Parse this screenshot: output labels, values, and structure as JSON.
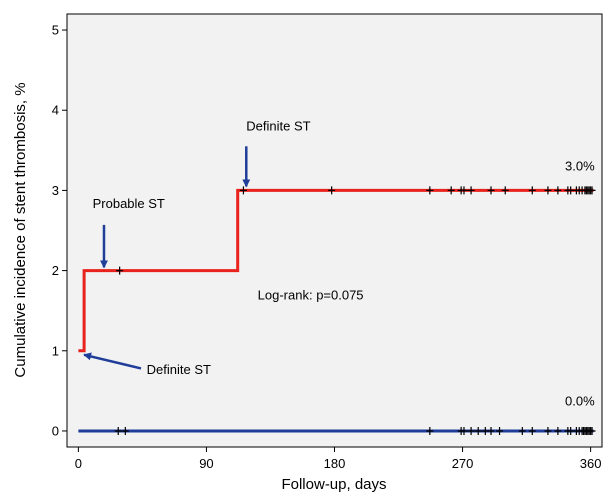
{
  "chart_data": {
    "type": "line",
    "xlabel": "Follow-up, days",
    "ylabel": "Cumulative incidence of stent thrombosis, %",
    "xlim": [
      -8,
      368
    ],
    "ylim": [
      -0.2,
      5.2
    ],
    "xticks": [
      0,
      90,
      180,
      270,
      360
    ],
    "yticks": [
      0,
      1,
      2,
      3,
      4,
      5
    ],
    "grid": false,
    "colors": {
      "plot_bg": "#f2f2f2",
      "axis": "#000000",
      "arrow": "#1f3d99"
    },
    "series": [
      {
        "color": "#e8221c",
        "step_points": [
          [
            0,
            1
          ],
          [
            4,
            1
          ],
          [
            4,
            2
          ],
          [
            112,
            2
          ],
          [
            112,
            3
          ],
          [
            362,
            3
          ]
        ],
        "censor_x": [
          29,
          116,
          178,
          247,
          262,
          269,
          271,
          276,
          290,
          300,
          319,
          330,
          337,
          344,
          346,
          350,
          352,
          354,
          356,
          357,
          358,
          359,
          360,
          361
        ]
      },
      {
        "color": "#1f3d99",
        "step_points": [
          [
            0,
            0
          ],
          [
            362,
            0
          ]
        ],
        "censor_x": [
          28,
          33,
          247,
          269,
          271,
          276,
          281,
          286,
          290,
          296,
          312,
          319,
          330,
          337,
          344,
          346,
          350,
          352,
          354,
          355,
          356,
          357,
          358,
          359,
          360,
          361
        ]
      }
    ],
    "annotations": [
      {
        "text": "Definite ST",
        "x": 118,
        "y": 3.75,
        "arrow_from": [
          118,
          3.55
        ],
        "arrow_to": [
          118,
          3.05
        ]
      },
      {
        "text": "Probable ST",
        "x": 10,
        "y": 2.78,
        "arrow_from": [
          18,
          2.57
        ],
        "arrow_to": [
          18,
          2.04
        ]
      },
      {
        "text": "Definite ST",
        "x": 48,
        "y": 0.71,
        "arrow_from": [
          44,
          0.78
        ],
        "arrow_to": [
          4,
          0.95
        ]
      },
      {
        "text": "Log-rank: p=0.075",
        "x": 126,
        "y": 1.64
      },
      {
        "text": "3.0%",
        "x": 342,
        "y": 3.25
      },
      {
        "text": "0.0%",
        "x": 342,
        "y": 0.32
      }
    ]
  }
}
